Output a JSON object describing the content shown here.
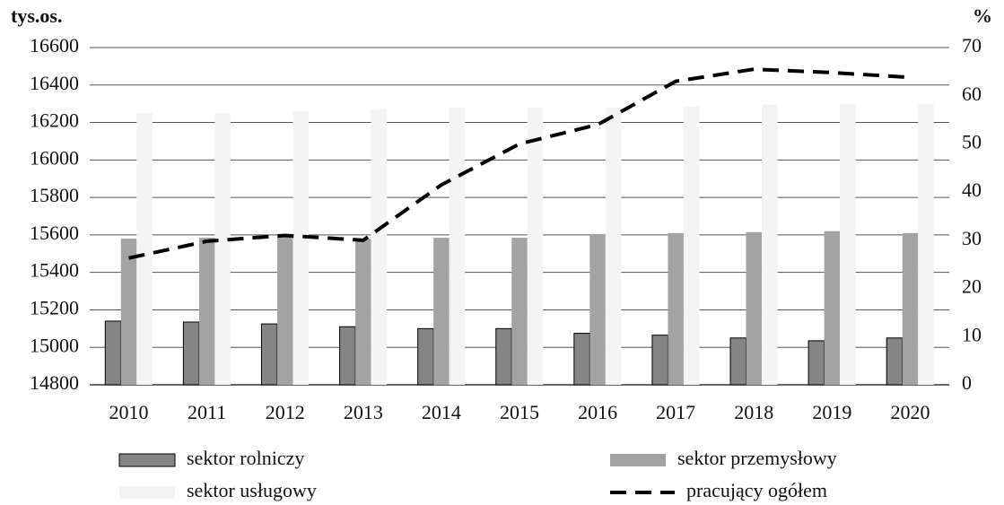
{
  "chart_data": {
    "type": "bar",
    "y_label": "tys.os.",
    "y2_label": "%",
    "categories": [
      "2010",
      "2011",
      "2012",
      "2013",
      "2014",
      "2015",
      "2016",
      "2017",
      "2018",
      "2019",
      "2020"
    ],
    "series": [
      {
        "name": "sektor rolniczy",
        "type": "bar",
        "color": "#858585",
        "values": [
          15140,
          15135,
          15125,
          15110,
          15100,
          15100,
          15075,
          15065,
          15050,
          15035,
          15050
        ]
      },
      {
        "name": "sektor przemysłowy",
        "type": "bar",
        "color": "#a3a3a3",
        "values": [
          15580,
          15585,
          15590,
          15580,
          15585,
          15585,
          15605,
          15610,
          15615,
          15620,
          15610
        ]
      },
      {
        "name": "sektor usługowy",
        "type": "bar",
        "color": "#f3f4f3",
        "values": [
          16250,
          16250,
          16260,
          16270,
          16280,
          16280,
          16280,
          16285,
          16295,
          16300,
          16300
        ]
      },
      {
        "name": "pracujący ogółem",
        "type": "line",
        "axis": "y2",
        "color": "#000000",
        "values": [
          26.3,
          29.8,
          31,
          30,
          41.5,
          50,
          54,
          63,
          65.5,
          64.8,
          63.8
        ]
      }
    ],
    "ylim": [
      14800,
      16600
    ],
    "yticks": [
      14800,
      15000,
      15200,
      15400,
      15600,
      15800,
      16000,
      16200,
      16400,
      16600
    ],
    "y2lim": [
      0,
      70
    ],
    "y2ticks": [
      0,
      10,
      20,
      30,
      40,
      50,
      60,
      70
    ],
    "grid": true
  }
}
